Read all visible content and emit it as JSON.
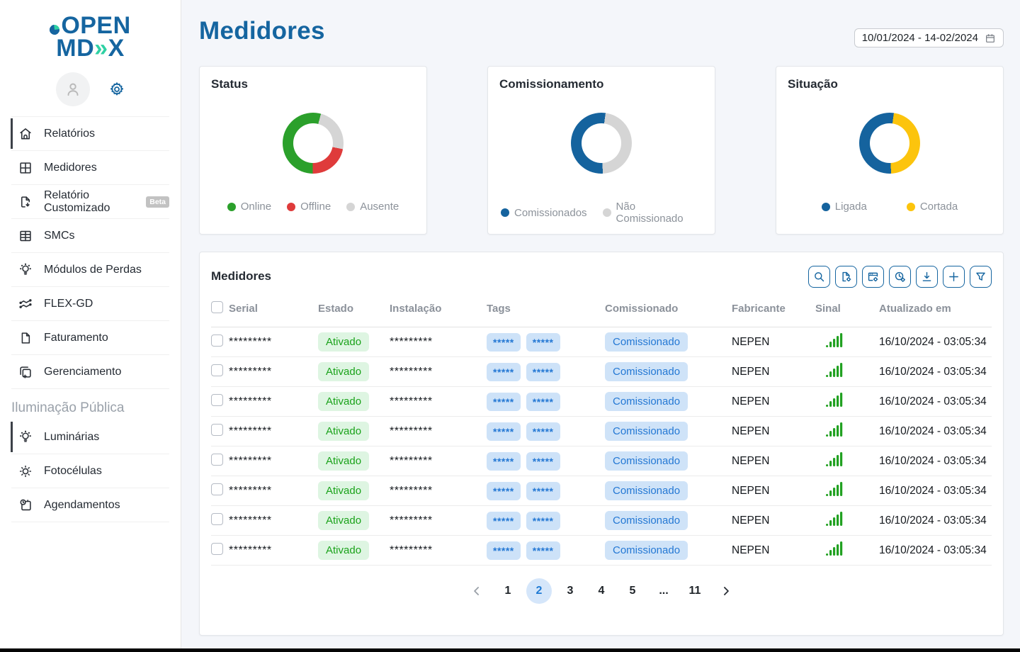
{
  "app": {
    "logo_line1": "OPEN",
    "logo_line2_prefix": "MD",
    "logo_line2_chevrons": "»",
    "logo_line2_suffix": "X"
  },
  "sidebar": {
    "items": [
      {
        "label": "Relatórios",
        "icon": "home-icon"
      },
      {
        "label": "Medidores",
        "icon": "grid-icon"
      },
      {
        "label": "Relatório Customizado",
        "icon": "document-export-icon",
        "badge": "Beta"
      },
      {
        "label": "SMCs",
        "icon": "table-icon"
      },
      {
        "label": "Módulos de Perdas",
        "icon": "bulb-icon"
      },
      {
        "label": "FLEX-GD",
        "icon": "zigzag-chart-icon"
      },
      {
        "label": "Faturamento",
        "icon": "document-icon"
      },
      {
        "label": "Gerenciamento",
        "icon": "copy-add-icon"
      }
    ],
    "section_label": "Iluminação Pública",
    "section_items": [
      {
        "label": "Luminárias",
        "icon": "bulb-icon"
      },
      {
        "label": "Fotocélulas",
        "icon": "sun-icon"
      },
      {
        "label": "Agendamentos",
        "icon": "calendar-clock-icon"
      }
    ]
  },
  "header": {
    "title": "Medidores",
    "date_range": "10/01/2024 - 14-02/2024"
  },
  "chart_data": [
    {
      "type": "pie",
      "title": "Status",
      "rotation_deg": 15,
      "slices_clockwise_from_top": [
        {
          "label": "Ausente",
          "value": 24,
          "color": "#d5d5d5"
        },
        {
          "label": "Offline",
          "value": 22,
          "color": "#df3b3b"
        },
        {
          "label": "Online",
          "value": 54,
          "color": "#2ba02b"
        }
      ],
      "legend": [
        {
          "label": "Online",
          "color": "#2ba02b"
        },
        {
          "label": "Offline",
          "color": "#df3b3b"
        },
        {
          "label": "Ausente",
          "color": "#d5d5d5"
        }
      ]
    },
    {
      "type": "pie",
      "title": "Comissionamento",
      "rotation_deg": 8,
      "slices_clockwise_from_top": [
        {
          "label": "Não Comissionado",
          "value": 47,
          "color": "#d5d5d5"
        },
        {
          "label": "Comissionados",
          "value": 53,
          "color": "#15639e"
        }
      ],
      "legend": [
        {
          "label": "Comissionados",
          "color": "#15639e"
        },
        {
          "label": "Não Comissionado",
          "color": "#d5d5d5"
        }
      ]
    },
    {
      "type": "pie",
      "title": "Situação",
      "rotation_deg": 8,
      "slices_clockwise_from_top": [
        {
          "label": "Cortada",
          "value": 47,
          "color": "#fcc40d"
        },
        {
          "label": "Ligada",
          "value": 53,
          "color": "#15639e"
        }
      ],
      "legend": [
        {
          "label": "Ligada",
          "color": "#15639e"
        },
        {
          "label": "Cortada",
          "color": "#fcc40d"
        }
      ]
    }
  ],
  "table": {
    "title": "Medidores",
    "toolbar_icons": [
      "search-icon",
      "file-settings-icon",
      "archive-settings-icon",
      "history-settings-icon",
      "download-icon",
      "add-icon",
      "filter-icon"
    ],
    "columns": [
      "Serial",
      "Estado",
      "Instalação",
      "Tags",
      "Comissionado",
      "Fabricante",
      "Sinal",
      "Atualizado em"
    ],
    "rows": [
      {
        "serial": "*********",
        "estado": "Ativado",
        "instalacao": "*********",
        "tags": [
          "*****",
          "*****"
        ],
        "comissionado": "Comissionado",
        "fabricante": "NEPEN",
        "sinal": "signal-strong",
        "atualizado_em": "16/10/2024 - 03:05:34"
      },
      {
        "serial": "*********",
        "estado": "Ativado",
        "instalacao": "*********",
        "tags": [
          "*****",
          "*****"
        ],
        "comissionado": "Comissionado",
        "fabricante": "NEPEN",
        "sinal": "signal-strong",
        "atualizado_em": "16/10/2024 - 03:05:34"
      },
      {
        "serial": "*********",
        "estado": "Ativado",
        "instalacao": "*********",
        "tags": [
          "*****",
          "*****"
        ],
        "comissionado": "Comissionado",
        "fabricante": "NEPEN",
        "sinal": "signal-strong",
        "atualizado_em": "16/10/2024 - 03:05:34"
      },
      {
        "serial": "*********",
        "estado": "Ativado",
        "instalacao": "*********",
        "tags": [
          "*****",
          "*****"
        ],
        "comissionado": "Comissionado",
        "fabricante": "NEPEN",
        "sinal": "signal-strong",
        "atualizado_em": "16/10/2024 - 03:05:34"
      },
      {
        "serial": "*********",
        "estado": "Ativado",
        "instalacao": "*********",
        "tags": [
          "*****",
          "*****"
        ],
        "comissionado": "Comissionado",
        "fabricante": "NEPEN",
        "sinal": "signal-strong",
        "atualizado_em": "16/10/2024 - 03:05:34"
      },
      {
        "serial": "*********",
        "estado": "Ativado",
        "instalacao": "*********",
        "tags": [
          "*****",
          "*****"
        ],
        "comissionado": "Comissionado",
        "fabricante": "NEPEN",
        "sinal": "signal-strong",
        "atualizado_em": "16/10/2024 - 03:05:34"
      },
      {
        "serial": "*********",
        "estado": "Ativado",
        "instalacao": "*********",
        "tags": [
          "*****",
          "*****"
        ],
        "comissionado": "Comissionado",
        "fabricante": "NEPEN",
        "sinal": "signal-strong",
        "atualizado_em": "16/10/2024 - 03:05:34"
      },
      {
        "serial": "*********",
        "estado": "Ativado",
        "instalacao": "*********",
        "tags": [
          "*****",
          "*****"
        ],
        "comissionado": "Comissionado",
        "fabricante": "NEPEN",
        "sinal": "signal-strong",
        "atualizado_em": "16/10/2024 - 03:05:34"
      }
    ],
    "pagination": {
      "pages": [
        "1",
        "2",
        "3",
        "4",
        "5",
        "...",
        "11"
      ],
      "active": "2"
    }
  },
  "colors": {
    "brand_blue": "#1565a0",
    "brand_teal": "#2fd1a4",
    "page_bg": "#f4f6fa",
    "online_green": "#2ba02b",
    "offline_red": "#df3b3b",
    "absent_gray": "#d5d5d5",
    "donut_blue": "#15639e",
    "cut_yellow": "#fcc40d",
    "badge_green_bg": "#def5e2",
    "badge_green_text": "#1aa21a",
    "badge_blue_bg": "#cfe3f8",
    "badge_blue_text": "#2478d4"
  }
}
